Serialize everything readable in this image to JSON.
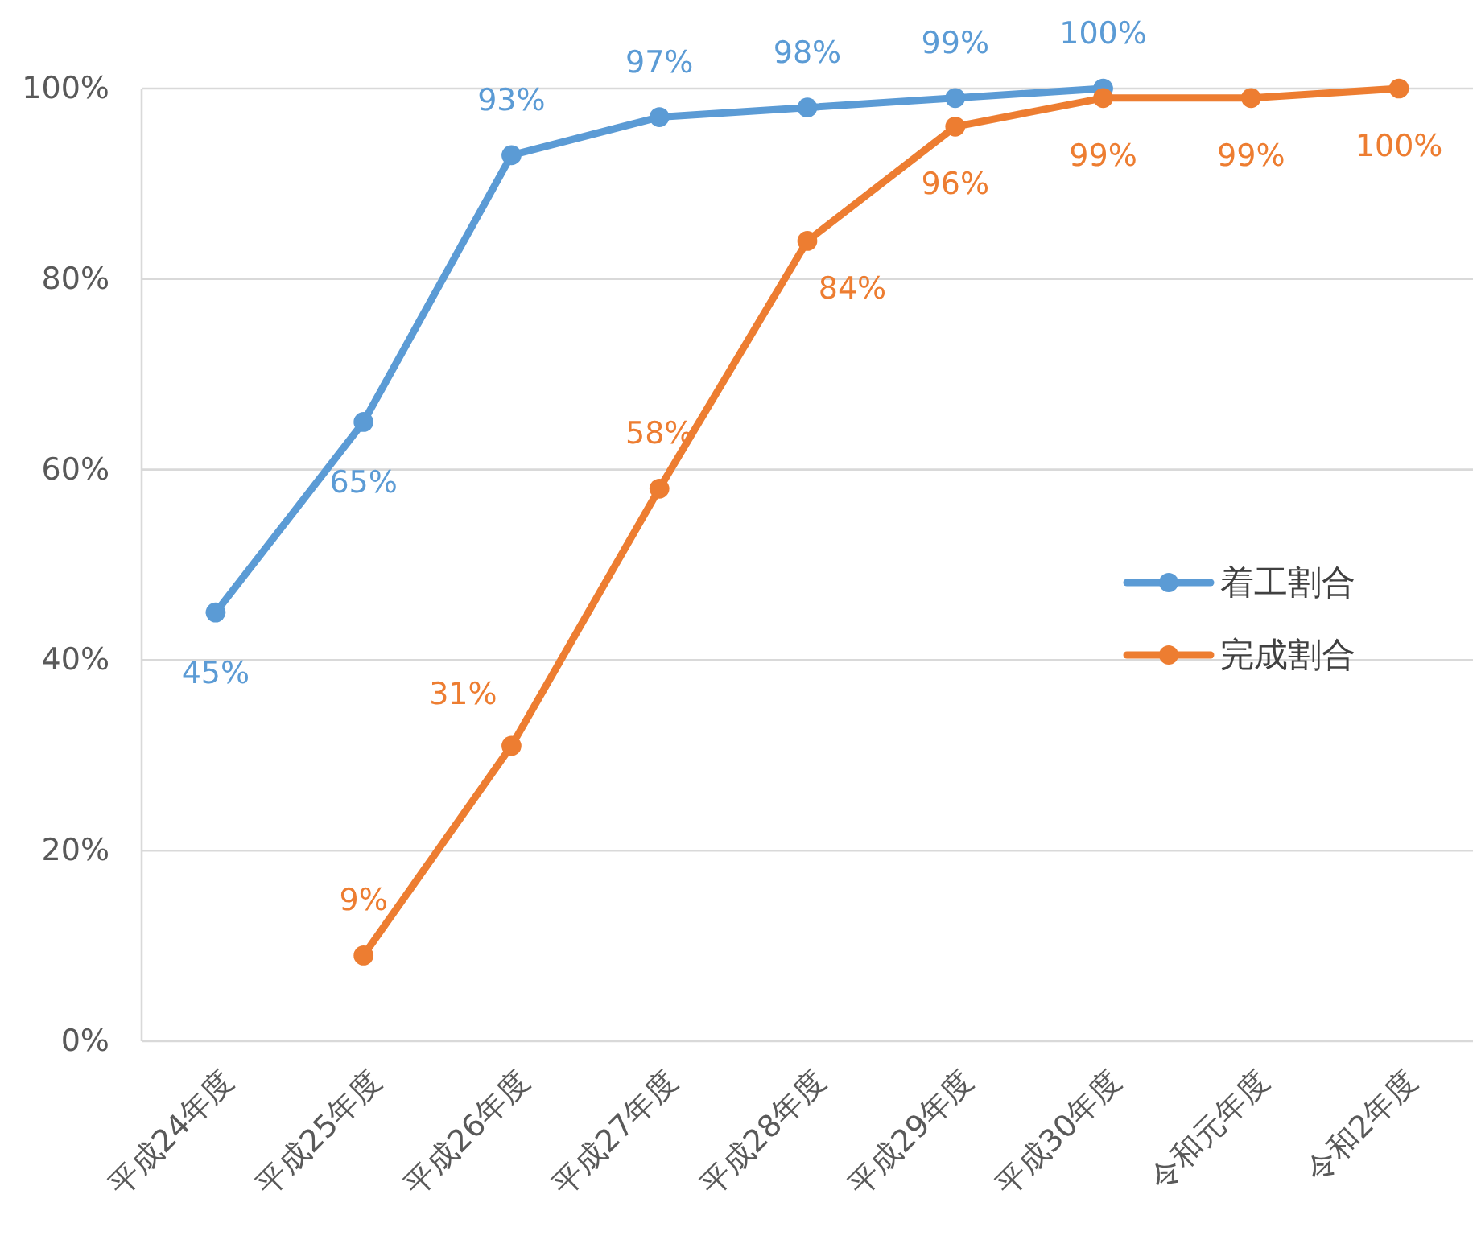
{
  "chart_data": {
    "type": "line",
    "categories": [
      "平成24年度",
      "平成25年度",
      "平成26年度",
      "平成27年度",
      "平成28年度",
      "平成29年度",
      "平成30年度",
      "令和元年度",
      "令和2年度"
    ],
    "series": [
      {
        "name": "着工割合",
        "color": "#5b9bd5",
        "values": [
          45,
          65,
          93,
          97,
          98,
          99,
          100,
          null,
          null
        ],
        "value_labels": [
          "45%",
          "65%",
          "93%",
          "97%",
          "98%",
          "99%",
          "100%",
          null,
          null
        ]
      },
      {
        "name": "完成割合",
        "color": "#ed7d31",
        "values": [
          null,
          9,
          31,
          58,
          84,
          96,
          99,
          99,
          100
        ],
        "value_labels": [
          null,
          "9%",
          "31%",
          "58%",
          "84%",
          "96%",
          "99%",
          "99%",
          "100%"
        ]
      }
    ],
    "ylim": [
      0,
      100
    ],
    "yticks": [
      {
        "value": 0,
        "label": "0%"
      },
      {
        "value": 20,
        "label": "20%"
      },
      {
        "value": 40,
        "label": "40%"
      },
      {
        "value": 60,
        "label": "60%"
      },
      {
        "value": 80,
        "label": "80%"
      },
      {
        "value": 100,
        "label": "100%"
      }
    ],
    "grid": "y",
    "legend": "right",
    "marker": "circle",
    "line_style": "solid"
  }
}
